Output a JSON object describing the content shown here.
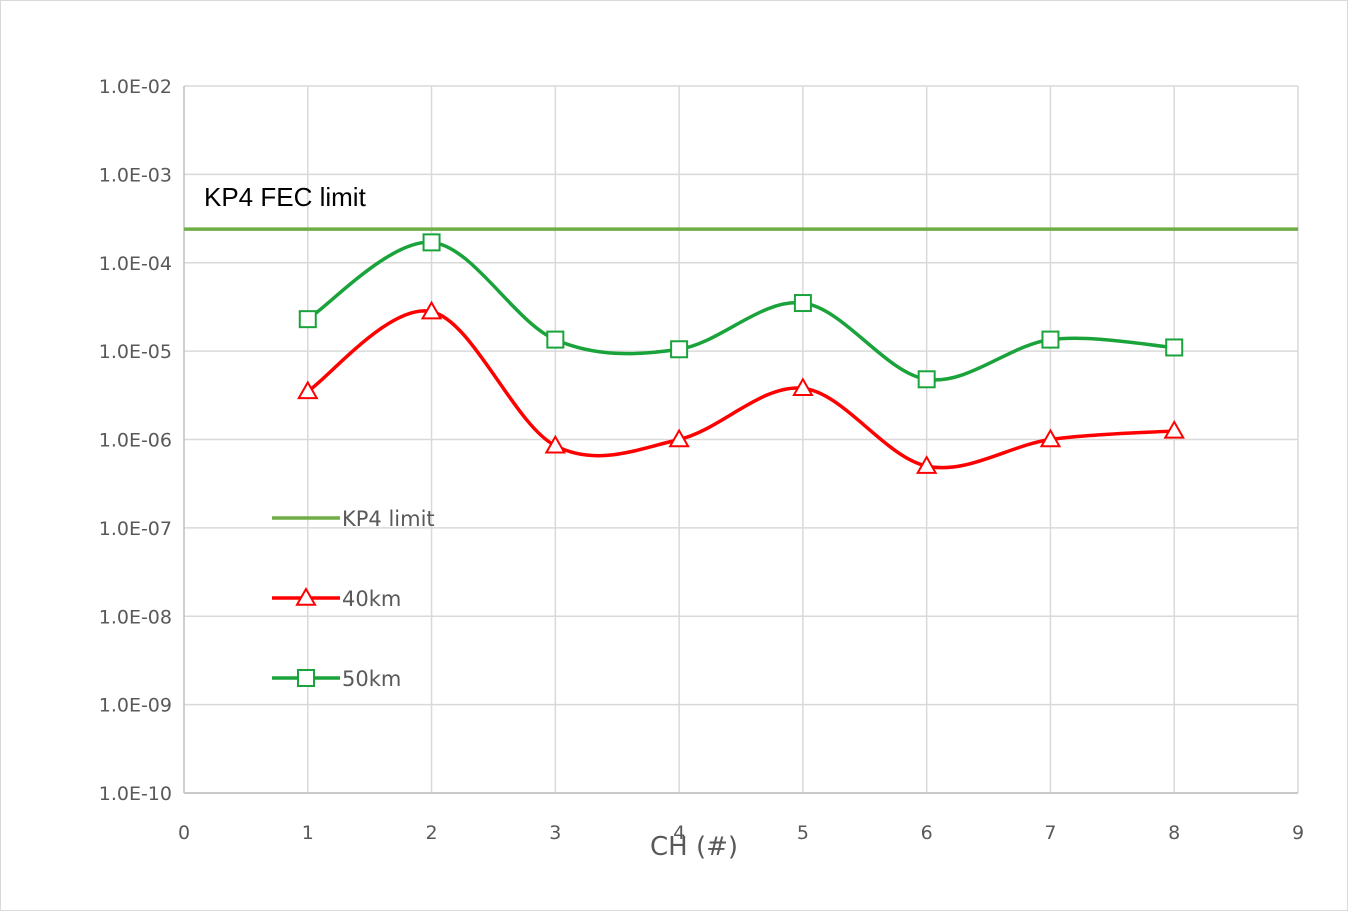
{
  "chart_data": {
    "type": "line",
    "xlabel": "CH (#)",
    "ylabel": "",
    "title": "",
    "xlim": [
      0,
      9
    ],
    "x_ticks": [
      "0",
      "1",
      "2",
      "3",
      "4",
      "5",
      "6",
      "7",
      "8",
      "9"
    ],
    "ylim": [
      1e-10,
      0.01
    ],
    "y_scale": "log",
    "y_ticks": [
      "1.0E-10",
      "1.0E-09",
      "1.0E-08",
      "1.0E-07",
      "1.0E-06",
      "1.0E-05",
      "1.0E-04",
      "1.0E-03",
      "1.0E-02"
    ],
    "grid": true,
    "legend_position": "lower-left inside plot",
    "annotation": "KP4 FEC limit",
    "x": [
      1,
      2,
      3,
      4,
      5,
      6,
      7,
      8
    ],
    "series": [
      {
        "name": "KP4 limit",
        "kind": "horizontal-line",
        "value": 0.00024,
        "color": "#70ad47"
      },
      {
        "name": "40km",
        "marker": "triangle",
        "color": "#ff0000",
        "values": [
          3.5e-06,
          2.8e-05,
          8.5e-07,
          1e-06,
          3.8e-06,
          5e-07,
          1e-06,
          1.25e-06
        ]
      },
      {
        "name": "50km",
        "marker": "square",
        "color": "#1aa33a",
        "values": [
          2.3e-05,
          0.00017,
          1.35e-05,
          1.05e-05,
          3.5e-05,
          4.8e-06,
          1.35e-05,
          1.1e-05
        ]
      }
    ]
  }
}
